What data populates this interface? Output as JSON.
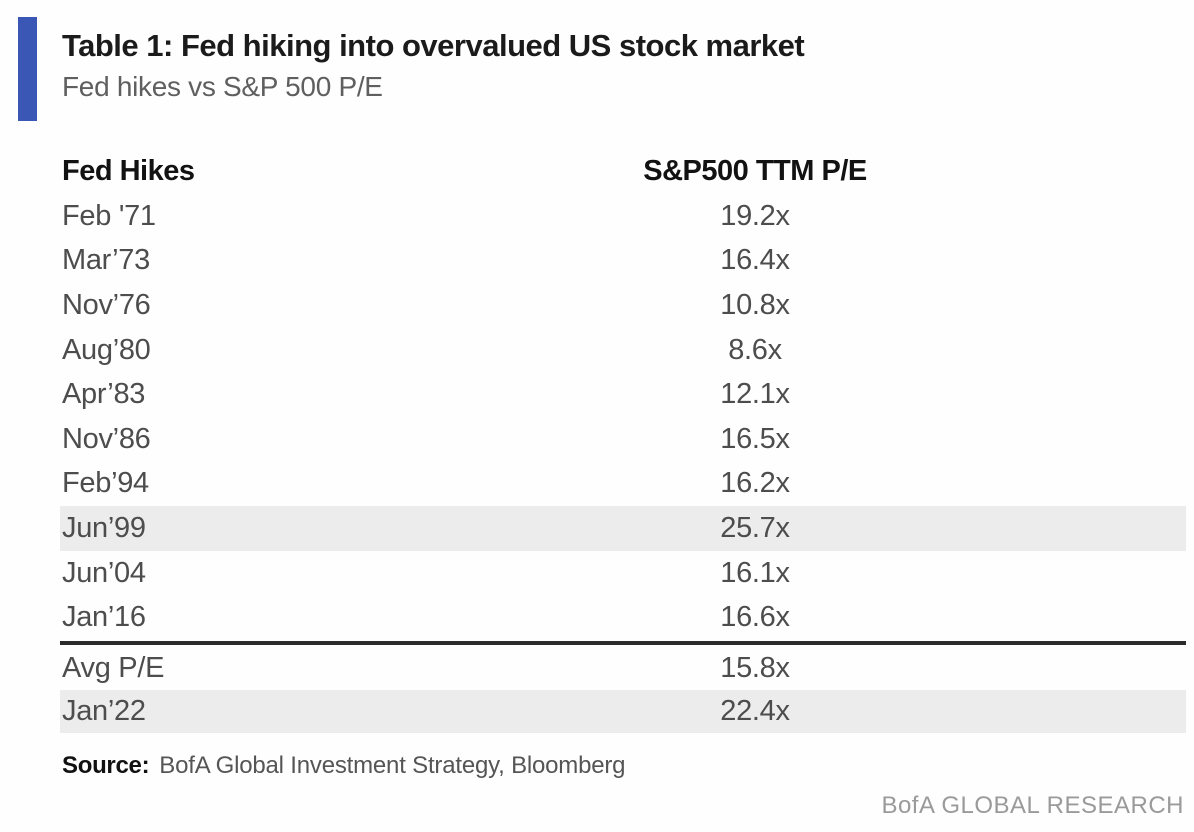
{
  "accent_color": "#3a57b5",
  "highlight_color": "#ececec",
  "header": {
    "title": "Table 1: Fed hiking into overvalued US stock market",
    "subtitle": "Fed hikes vs S&P 500 P/E"
  },
  "table": {
    "columns": [
      "Fed Hikes",
      "S&P500 TTM P/E"
    ],
    "rows": [
      {
        "hike": "Feb '71",
        "pe": "19.2x",
        "highlight": false
      },
      {
        "hike": "Mar’73",
        "pe": "16.4x",
        "highlight": false
      },
      {
        "hike": "Nov’76",
        "pe": "10.8x",
        "highlight": false
      },
      {
        "hike": "Aug’80",
        "pe": "8.6x",
        "highlight": false
      },
      {
        "hike": "Apr’83",
        "pe": "12.1x",
        "highlight": false
      },
      {
        "hike": "Nov’86",
        "pe": "16.5x",
        "highlight": false
      },
      {
        "hike": "Feb’94",
        "pe": "16.2x",
        "highlight": false
      },
      {
        "hike": "Jun’99",
        "pe": "25.7x",
        "highlight": true
      },
      {
        "hike": "Jun’04",
        "pe": "16.1x",
        "highlight": false
      },
      {
        "hike": "Jan’16",
        "pe": "16.6x",
        "highlight": false
      }
    ],
    "summary_rows": [
      {
        "hike": "Avg P/E",
        "pe": "15.8x",
        "highlight": false
      },
      {
        "hike": "Jan’22",
        "pe": "22.4x",
        "highlight": true
      }
    ]
  },
  "footer": {
    "source_label": "Source:",
    "source_text": "BofA Global Investment Strategy, Bloomberg",
    "brand": "BofA GLOBAL RESEARCH"
  },
  "chart_data": {
    "type": "table",
    "title": "Table 1: Fed hiking into overvalued US stock market",
    "subtitle": "Fed hikes vs S&P 500 P/E",
    "columns": [
      "Fed Hikes",
      "S&P500 TTM P/E"
    ],
    "rows": [
      [
        "Feb '71",
        "19.2x"
      ],
      [
        "Mar’73",
        "16.4x"
      ],
      [
        "Nov’76",
        "10.8x"
      ],
      [
        "Aug’80",
        "8.6x"
      ],
      [
        "Apr’83",
        "12.1x"
      ],
      [
        "Nov’86",
        "16.5x"
      ],
      [
        "Feb’94",
        "16.2x"
      ],
      [
        "Jun’99",
        "25.7x"
      ],
      [
        "Jun’04",
        "16.1x"
      ],
      [
        "Jan’16",
        "16.6x"
      ],
      [
        "Avg P/E",
        "15.8x"
      ],
      [
        "Jan’22",
        "22.4x"
      ]
    ],
    "pe_values_numeric": [
      19.2,
      16.4,
      10.8,
      8.6,
      12.1,
      16.5,
      16.2,
      25.7,
      16.1,
      16.6
    ],
    "avg_pe": 15.8,
    "jan22_pe": 22.4,
    "highlighted_rows": [
      "Jun’99",
      "Jan’22"
    ],
    "source": "BofA Global Investment Strategy, Bloomberg",
    "publisher": "BofA GLOBAL RESEARCH"
  }
}
